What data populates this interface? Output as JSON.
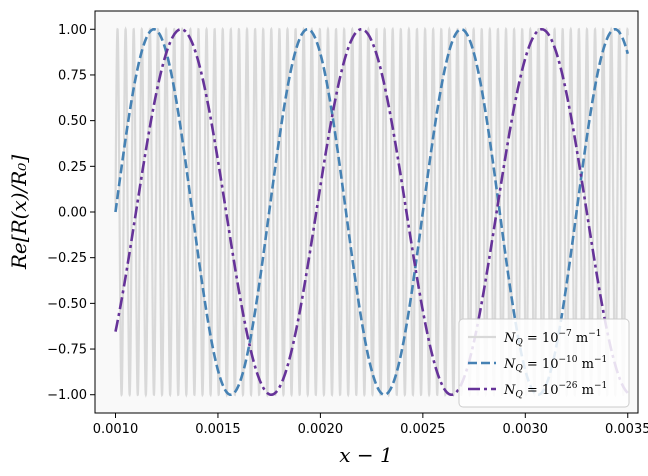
{
  "chart_data": {
    "type": "line",
    "xlabel": "x − 1",
    "ylabel": "Re[R(x)/R₀]",
    "xlim": [
      0.0009,
      0.00355
    ],
    "ylim": [
      -1.1,
      1.1
    ],
    "xticks": [
      "0.0010",
      "0.0015",
      "0.0020",
      "0.0025",
      "0.0030",
      "0.0035"
    ],
    "yticks": [
      "−1.00",
      "−0.75",
      "−0.50",
      "−0.25",
      "0.00",
      "0.25",
      "0.50",
      "0.75",
      "1.00"
    ],
    "grid": false,
    "legend_position": "bottom-right",
    "x_domain": [
      0.001,
      0.0035
    ],
    "series": [
      {
        "name": "N_Q = 10^-7 m^-1",
        "color": "#d9d9d9",
        "style": "solid",
        "function": "sin",
        "period": 3.95e-05,
        "phase_x0": 0.001
      },
      {
        "name": "N_Q = 10^-10 m^-1",
        "color": "#4682b4",
        "style": "dashed",
        "function": "sin",
        "period": 0.00075,
        "phase_x0": 0.001
      },
      {
        "name": "N_Q = 10^-26 m^-1",
        "color": "#663399",
        "style": "dashdot",
        "function": "-cos",
        "period": 0.00088,
        "phase_x0": 0.00088
      }
    ],
    "legend": [
      {
        "prefix": "N",
        "sub": "Q",
        "mid": " = 10",
        "exp": "−7",
        "unit": " m",
        "unit_exp": "−1"
      },
      {
        "prefix": "N",
        "sub": "Q",
        "mid": " = 10",
        "exp": "−10",
        "unit": " m",
        "unit_exp": "−1"
      },
      {
        "prefix": "N",
        "sub": "Q",
        "mid": " = 10",
        "exp": "−26",
        "unit": " m",
        "unit_exp": "−1"
      }
    ]
  }
}
